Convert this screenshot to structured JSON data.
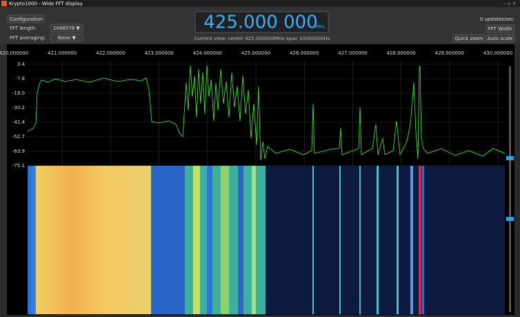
{
  "window": {
    "title": "Krypto1000 - Wide FFT display"
  },
  "toolbar": {
    "configuration": "Configuration",
    "fft_length_label": "FFT length:",
    "fft_length_value": "1048576 ▼",
    "fft_averaging_label": "FFT averaging:",
    "fft_averaging_value": "None ▼",
    "frequency": "425.000 000",
    "frequency_unit": "MHz",
    "current_view": "Current view: center 425.000000MHz span 10000000Hz",
    "updates": "0 updates/sec",
    "fft_width": "FFT Width",
    "quick_zoom": "Quick zoom",
    "auto_scale": "Auto scale"
  },
  "spectrum": {
    "x_labels": [
      "420.000000",
      "421.000000",
      "422.000000",
      "423.000000",
      "424.000000",
      "425.000000",
      "426.000000",
      "427.000000",
      "428.000000",
      "429.000000",
      "430.000000"
    ],
    "y_labels": [
      "3.4",
      "-7.8",
      "-19.0",
      "-30.2",
      "-41.4",
      "-52.7",
      "-63.9",
      "-75.1"
    ]
  }
}
